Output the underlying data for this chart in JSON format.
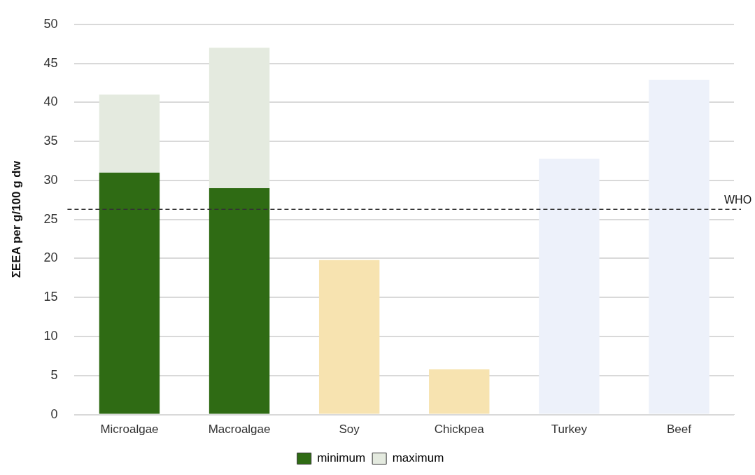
{
  "chart_data": {
    "type": "bar",
    "stacked": true,
    "ylabel": "ΣEEA per g/100 g dw",
    "categories": [
      "Microalgae",
      "Macroalgae",
      "Soy",
      "Chickpea",
      "Turkey",
      "Beef"
    ],
    "series": [
      {
        "name": "minimum",
        "colors": [
          "#2f6b14",
          "#2f6b14",
          "#f7e3b0",
          "#f7e3b0",
          "#edf1fa",
          "#edf1fa"
        ],
        "values": [
          31,
          29,
          19.8,
          5.8,
          32.8,
          42.9
        ]
      },
      {
        "name": "maximum",
        "color": "#e4eadf",
        "values": [
          10,
          18,
          null,
          null,
          null,
          null
        ]
      }
    ],
    "ylim": [
      0,
      50
    ],
    "yticks": [
      0,
      5,
      10,
      15,
      20,
      25,
      30,
      35,
      40,
      45,
      50
    ],
    "grid": "y",
    "legend": "bottom",
    "ref_lines": [
      {
        "axis": "y",
        "value": 26.3,
        "label": "WHO",
        "color": "#333333",
        "line_style": "dashed"
      }
    ]
  }
}
